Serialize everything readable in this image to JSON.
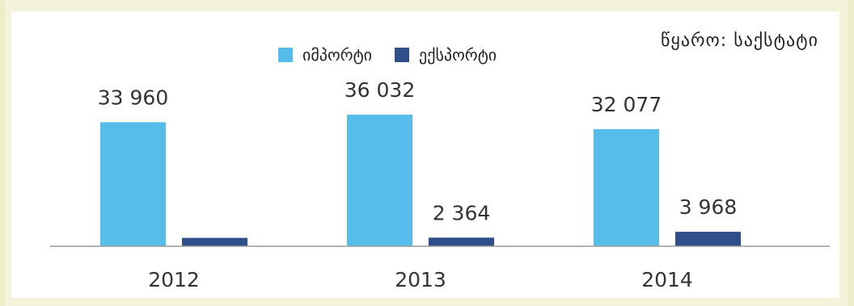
{
  "source_text": "წყარო: საქსტატი",
  "chart_data": {
    "type": "bar",
    "categories": [
      "2012",
      "2013",
      "2014"
    ],
    "series": [
      {
        "name": "იმპორტი",
        "color": "#56bdea",
        "values": [
          33960,
          36032,
          32077
        ],
        "labels": [
          "33 960",
          "36 032",
          "32 077"
        ]
      },
      {
        "name": "ექსპორტი",
        "color": "#2f4f8a",
        "values": [
          2292,
          2364,
          3968
        ],
        "labels": [
          "",
          "2 364",
          "3 968"
        ]
      }
    ],
    "title": "",
    "xlabel": "",
    "ylabel": "",
    "ylim": [
      0,
      36032
    ],
    "legend": "top-center",
    "grid": false
  }
}
